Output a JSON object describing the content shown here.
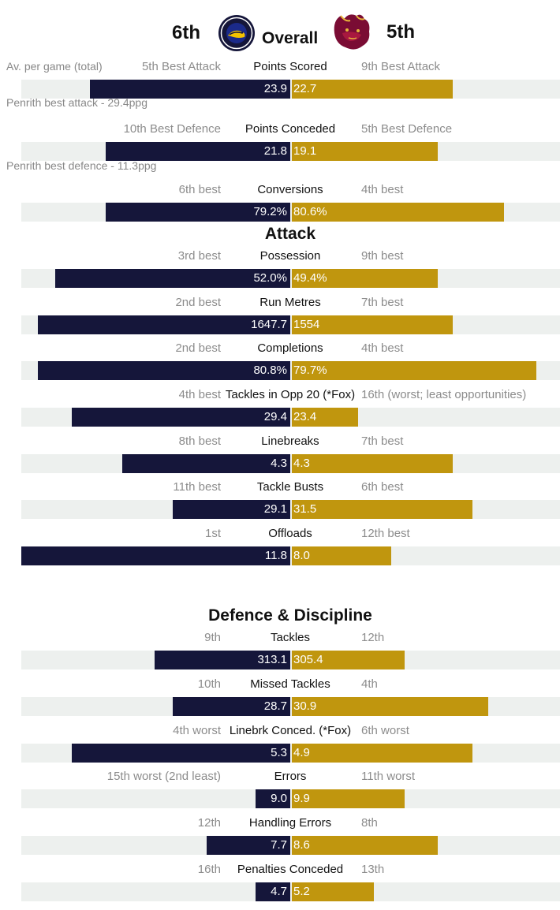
{
  "header": {
    "home_rank": "6th",
    "away_rank": "5th",
    "title": "Overall"
  },
  "colors": {
    "home_bar": "#15163a",
    "away_bar": "#c0960e",
    "track": "#edf0ee"
  },
  "notes": {
    "per_game": "Av. per game (total)",
    "best_attack": "Penrith best attack - 29.4ppg",
    "best_defence": "Penrith best defence - 11.3ppg"
  },
  "sections": {
    "attack": "Attack",
    "defence": "Defence & Discipline"
  },
  "chart_data": {
    "type": "bar",
    "scale_note": "diverging bars; each row scaled independently",
    "rows": [
      {
        "name": "Points Scored",
        "home_rank": "5th Best Attack",
        "away_rank": "9th Best Attack",
        "home": "23.9",
        "away": "22.7",
        "home_frac": 0.745,
        "away_frac": 0.617
      },
      {
        "name": "Points Conceded",
        "home_rank": "10th Best Defence",
        "away_rank": "5th Best Defence",
        "home": "21.8",
        "away": "19.1",
        "home_frac": 0.686,
        "away_frac": 0.561
      },
      {
        "name": "Conversions",
        "home_rank": "6th best",
        "away_rank": "4th best",
        "home": "79.2%",
        "away": "80.6%",
        "home_frac": 0.686,
        "away_frac": 0.816
      },
      {
        "name": "Possession",
        "home_rank": "3rd best",
        "away_rank": "9th best",
        "home": "52.0%",
        "away": "49.4%",
        "home_frac": 0.875,
        "away_frac": 0.561
      },
      {
        "name": "Run Metres",
        "home_rank": "2nd best",
        "away_rank": "7th best",
        "home": "1647.7",
        "away": "1554",
        "home_frac": 0.939,
        "away_frac": 0.617
      },
      {
        "name": "Completions",
        "home_rank": "2nd best",
        "away_rank": "4th best",
        "home": "80.8%",
        "away": "79.7%",
        "home_frac": 0.939,
        "away_frac": 0.939
      },
      {
        "name": "Tackles in Opp 20 (*Fox)",
        "home_rank": "4th best",
        "away_rank": "16th (worst; least opportunities)",
        "home": "29.4",
        "away": "23.4",
        "home_frac": 0.811,
        "away_frac": 0.255
      },
      {
        "name": "Linebreaks",
        "home_rank": "8th best",
        "away_rank": "7th best",
        "home": "4.3",
        "away": "4.3",
        "home_frac": 0.625,
        "away_frac": 0.617
      },
      {
        "name": "Tackle Busts",
        "home_rank": "11th best",
        "away_rank": "6th best",
        "home": "29.1",
        "away": "31.5",
        "home_frac": 0.436,
        "away_frac": 0.693
      },
      {
        "name": "Offloads",
        "home_rank": "1st",
        "away_rank": "12th best",
        "home": "11.8",
        "away": "8.0",
        "home_frac": 1.0,
        "away_frac": 0.383
      },
      {
        "name": "Tackles",
        "home_rank": "9th",
        "away_rank": "12th",
        "home": "313.1",
        "away": "305.4",
        "home_frac": 0.503,
        "away_frac": 0.434
      },
      {
        "name": "Missed Tackles",
        "home_rank": "10th",
        "away_rank": "4th",
        "home": "28.7",
        "away": "30.9",
        "home_frac": 0.436,
        "away_frac": 0.755
      },
      {
        "name": "Linebrk Conced. (*Fox)",
        "home_rank": "4th worst",
        "away_rank": "6th worst",
        "home": "5.3",
        "away": "4.9",
        "home_frac": 0.811,
        "away_frac": 0.693
      },
      {
        "name": "Errors",
        "home_rank": "15th worst (2nd least)",
        "away_rank": "11th worst",
        "home": "9.0",
        "away": "9.9",
        "home_frac": 0.128,
        "away_frac": 0.434
      },
      {
        "name": "Handling Errors",
        "home_rank": "12th",
        "away_rank": "8th",
        "home": "7.7",
        "away": "8.6",
        "home_frac": 0.311,
        "away_frac": 0.561
      },
      {
        "name": "Penalties Conceded",
        "home_rank": "16th",
        "away_rank": "13th",
        "home": "4.7",
        "away": "5.2",
        "home_frac": 0.128,
        "away_frac": 0.316
      }
    ]
  }
}
